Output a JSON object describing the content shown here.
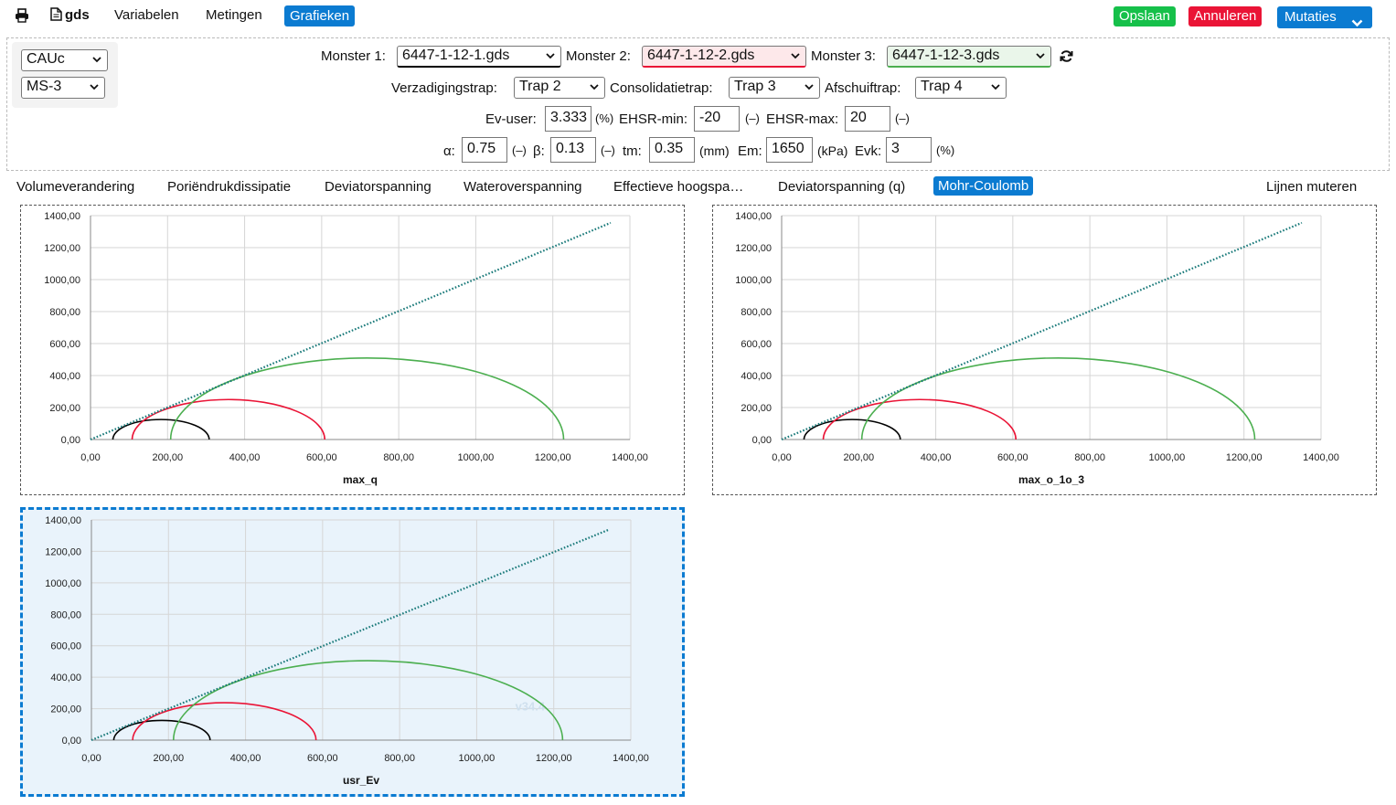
{
  "nav": {
    "print_icon": "printer-icon",
    "file_icon": "file-icon",
    "file_label": "gds",
    "variabelen": "Variabelen",
    "metingen": "Metingen",
    "grafieken": "Grafieken",
    "opslaan": "Opslaan",
    "annuleren": "Annuleren",
    "mutaties": "Mutaties",
    "colors": {
      "active": "#0b7bd1",
      "green": "#16c04a",
      "red": "#ea1436"
    }
  },
  "settings": {
    "test_type": "CAUc",
    "method": "MS-3",
    "monster1_label": "Monster 1:",
    "monster1_value": "6447-1-12-1.gds",
    "monster2_label": "Monster 2:",
    "monster2_value": "6447-1-12-2.gds",
    "monster3_label": "Monster 3:",
    "monster3_value": "6447-1-12-3.gds",
    "verzadigingstrap_label": "Verzadigingstrap:",
    "verzadigingstrap_value": "Trap 2",
    "consolidatietrap_label": "Consolidatietrap:",
    "consolidatietrap_value": "Trap 3",
    "afschuiftrap_label": "Afschuiftrap:",
    "afschuiftrap_value": "Trap 4",
    "ev_user_label": "Ev-user:",
    "ev_user_value": "3.333",
    "ev_user_unit": "(%)",
    "ehsr_min_label": "EHSR-min:",
    "ehsr_min_value": "-20",
    "ehsr_min_unit": "(–)",
    "ehsr_max_label": "EHSR-max:",
    "ehsr_max_value": "20",
    "ehsr_max_unit": "(–)",
    "alpha_label": "α:",
    "alpha_value": "0.75",
    "alpha_unit": "(–)",
    "beta_label": "β:",
    "beta_value": "0.13",
    "beta_unit": "(–)",
    "tm_label": "tm:",
    "tm_value": "0.35",
    "tm_unit": "(mm)",
    "em_label": "Em:",
    "em_value": "1650",
    "em_unit": "(kPa)",
    "evk_label": "Evk:",
    "evk_value": "3",
    "evk_unit": "(%)",
    "monster_colors": [
      "#000000",
      "#ea1436",
      "#4caf50"
    ]
  },
  "tabs": {
    "items": [
      "Volumeverandering",
      "Poriëndrukdissipatie",
      "Deviatorspanning",
      "Wateroverspanning",
      "Effectieve hoogspa…",
      "Deviatorspanning (q)",
      "Mohr-Coulomb"
    ],
    "active": "Mohr-Coulomb",
    "lijnen_muteren": "Lijnen muteren"
  },
  "chart_data": [
    {
      "type": "line",
      "title": "max_q",
      "x_ticks": [
        "0,00",
        "200,00",
        "400,00",
        "600,00",
        "800,00",
        "1000,00",
        "1200,00",
        "1400,00"
      ],
      "y_ticks": [
        "0,00",
        "200,00",
        "400,00",
        "600,00",
        "800,00",
        "1000,00",
        "1200,00",
        "1400,00"
      ],
      "xlim": [
        0,
        1400
      ],
      "ylim": [
        0,
        1400
      ],
      "grid": true,
      "circles": [
        {
          "center": 183,
          "radius": 125,
          "color": "#000000"
        },
        {
          "center": 358,
          "radius": 250,
          "color": "#ea1436"
        },
        {
          "center": 718,
          "radius": 510,
          "color": "#4caf50"
        }
      ],
      "envelope": {
        "x": [
          0,
          1350
        ],
        "y": [
          0,
          1355
        ],
        "color": "#1a7a7a",
        "style": "dotted"
      }
    },
    {
      "type": "line",
      "title": "max_o_1o_3",
      "x_ticks": [
        "0,00",
        "200,00",
        "400,00",
        "600,00",
        "800,00",
        "1000,00",
        "1200,00",
        "1400,00"
      ],
      "y_ticks": [
        "0,00",
        "200,00",
        "400,00",
        "600,00",
        "800,00",
        "1000,00",
        "1200,00",
        "1400,00"
      ],
      "xlim": [
        0,
        1400
      ],
      "ylim": [
        0,
        1400
      ],
      "grid": true,
      "circles": [
        {
          "center": 183,
          "radius": 125,
          "color": "#000000"
        },
        {
          "center": 358,
          "radius": 250,
          "color": "#ea1436"
        },
        {
          "center": 718,
          "radius": 510,
          "color": "#4caf50"
        }
      ],
      "envelope": {
        "x": [
          0,
          1350
        ],
        "y": [
          0,
          1355
        ],
        "color": "#1a7a7a",
        "style": "dotted"
      }
    },
    {
      "type": "line",
      "title": "usr_Ev",
      "watermark": "v34.4",
      "x_ticks": [
        "0,00",
        "200,00",
        "400,00",
        "600,00",
        "800,00",
        "1000,00",
        "1200,00",
        "1400,00"
      ],
      "y_ticks": [
        "0,00",
        "200,00",
        "400,00",
        "600,00",
        "800,00",
        "1000,00",
        "1200,00",
        "1400,00"
      ],
      "xlim": [
        0,
        1400
      ],
      "ylim": [
        0,
        1400
      ],
      "grid": true,
      "circles": [
        {
          "center": 183,
          "radius": 125,
          "color": "#000000"
        },
        {
          "center": 345,
          "radius": 238,
          "color": "#ea1436"
        },
        {
          "center": 718,
          "radius": 505,
          "color": "#4caf50"
        }
      ],
      "envelope": {
        "x": [
          0,
          1345
        ],
        "y": [
          0,
          1340
        ],
        "color": "#1a7a7a",
        "style": "dotted"
      }
    }
  ]
}
